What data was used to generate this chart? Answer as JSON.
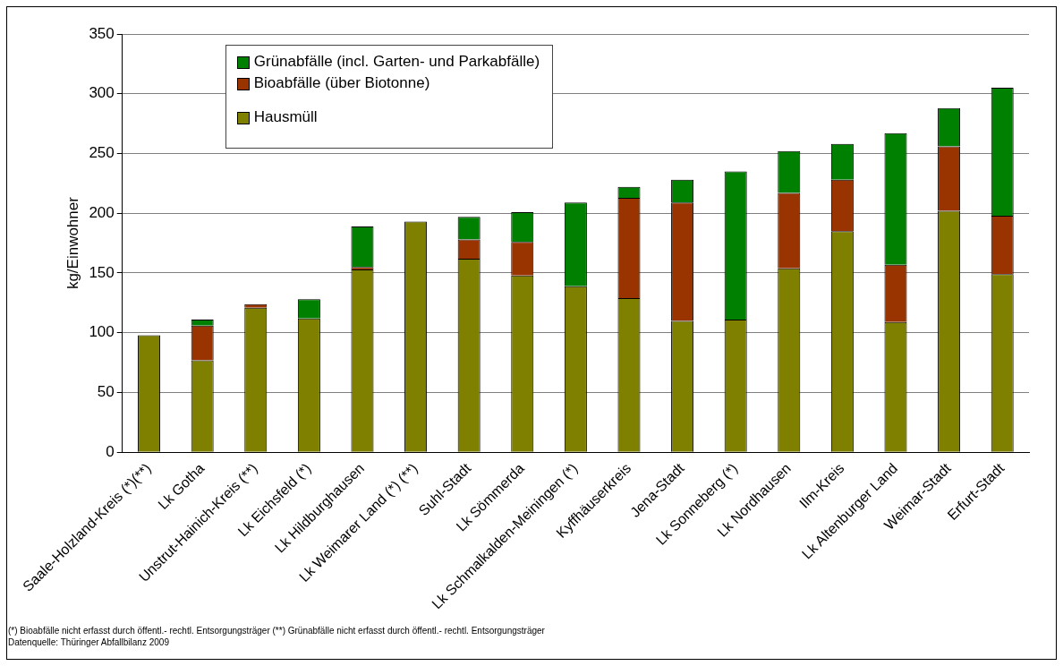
{
  "chart_data": {
    "type": "bar",
    "stacked": true,
    "ylabel": "kg/Einwohner",
    "categories": [
      "Saale-Holzland-Kreis (*)(**)",
      "Lk Gotha",
      "Unstrut-Hainich-Kreis (**)",
      "Lk Eichsfeld (*)",
      "Lk Hildburghausen",
      "Lk Weimarer Land (*) (**)",
      "Suhl-Stadt",
      "Lk Sömmerda",
      "Lk Schmalkalden-Meiningen (*)",
      "Kyffhäuserkreis",
      "Jena-Stadt",
      "Lk Sonneberg (*)",
      "Lk Nordhausen",
      "Ilm-Kreis",
      "Lk Altenburger Land",
      "Weimar-Stadt",
      "Erfurt-Stadt"
    ],
    "series": [
      {
        "name": "Hausmüll",
        "color": "#808000",
        "values": [
          98,
          77,
          121,
          112,
          153,
          193,
          162,
          148,
          139,
          129,
          110,
          111,
          154,
          185,
          109,
          202,
          149
        ]
      },
      {
        "name": "Bioabfälle (über Biotonne)",
        "color": "#993300",
        "values": [
          0,
          29,
          3,
          0,
          2,
          0,
          16,
          28,
          0,
          84,
          99,
          0,
          63,
          43,
          48,
          54,
          49
        ]
      },
      {
        "name": "Grünabfälle (incl. Garten- und Parkabfälle)",
        "color": "#008000",
        "values": [
          0,
          5,
          0,
          16,
          34,
          0,
          19,
          25,
          70,
          9,
          19,
          124,
          35,
          30,
          110,
          32,
          107
        ]
      }
    ],
    "ylim": [
      0,
      350
    ],
    "yticks": [
      0,
      50,
      100,
      150,
      200,
      250,
      300,
      350
    ],
    "grid": "y",
    "legend": "top left",
    "annotations": [
      "(*) Bioabfälle nicht erfasst durch öffentl.- rechtl. Entsorgungsträger (**) Grünabfälle nicht erfasst durch öffentl.- rechtl. Entsorgungsträger",
      "Datenquelle: Thüringer Abfallbilanz 2009"
    ]
  }
}
